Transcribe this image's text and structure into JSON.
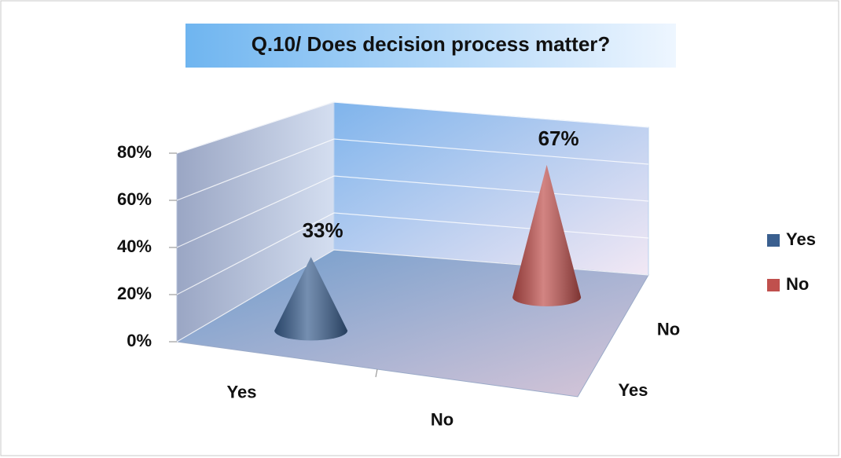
{
  "chart_data": {
    "type": "cone3d",
    "title": "Q.10/ Does decision process matter?",
    "categories": [
      "Yes",
      "No"
    ],
    "series": [
      {
        "name": "Yes",
        "color": "#3a5f8f",
        "values": [
          33,
          null
        ],
        "value_labels": [
          "33%",
          null
        ]
      },
      {
        "name": "No",
        "color": "#c0504d",
        "values": [
          null,
          67
        ],
        "value_labels": [
          null,
          "67%"
        ]
      }
    ],
    "ylim": [
      0,
      80
    ],
    "yticks": [
      {
        "value": 0,
        "label": "0%"
      },
      {
        "value": 20,
        "label": "20%"
      },
      {
        "value": 40,
        "label": "40%"
      },
      {
        "value": 60,
        "label": "60%"
      },
      {
        "value": 80,
        "label": "80%"
      }
    ],
    "grid": true,
    "legend": "right"
  }
}
